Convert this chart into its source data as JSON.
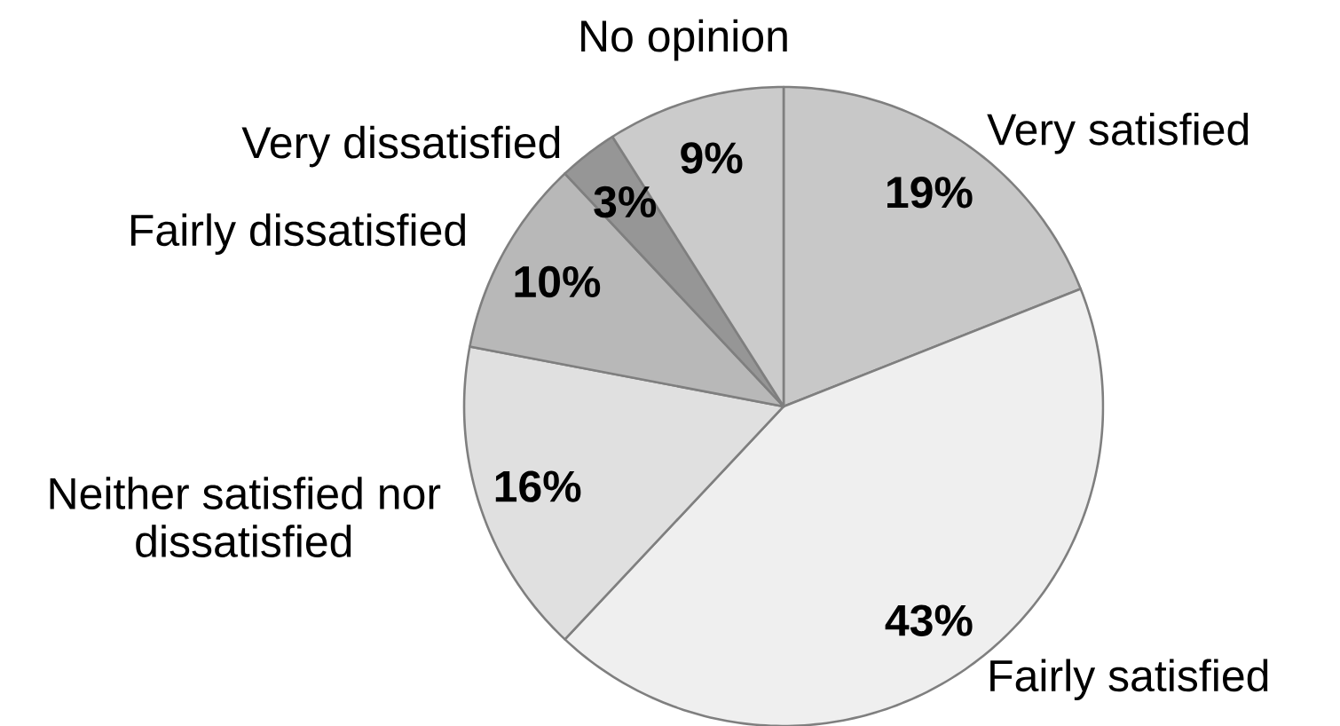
{
  "chart_data": {
    "type": "pie",
    "categories": [
      "Very satisfied",
      "Fairly satisfied",
      "Neither satisfied nor dissatisfied",
      "Fairly dissatisfied",
      "Very dissatisfied",
      "No opinion"
    ],
    "values": [
      19,
      43,
      16,
      10,
      3,
      9
    ],
    "colors": [
      "#c8c8c8",
      "#efefef",
      "#e0e0e0",
      "#b8b8b8",
      "#969696",
      "#cbcbcb"
    ],
    "value_labels": [
      "19%",
      "43%",
      "16%",
      "10%",
      "3%",
      "9%"
    ]
  }
}
